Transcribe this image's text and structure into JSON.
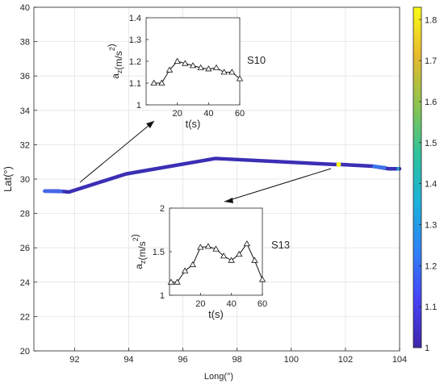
{
  "chart_data": {
    "type": "line",
    "main": {
      "xlabel": "Long(°)",
      "ylabel": "Lat(°)",
      "xlim": [
        90.5,
        104
      ],
      "ylim": [
        20,
        40
      ],
      "xticks": [
        92,
        94,
        96,
        98,
        100,
        102,
        104
      ],
      "yticks": [
        20,
        22,
        24,
        26,
        28,
        30,
        32,
        34,
        36,
        38,
        40
      ],
      "grid": true,
      "track": {
        "lon": [
          90.9,
          91.4,
          91.8,
          93.9,
          97.2,
          101.6,
          101.8,
          103.0,
          103.6,
          104.0
        ],
        "lat": [
          29.3,
          29.3,
          29.25,
          30.3,
          31.2,
          30.85,
          30.85,
          30.75,
          30.6,
          30.6
        ]
      },
      "highlight": {
        "lon": 101.75,
        "lat": 30.85,
        "value": 1.8
      }
    },
    "colorbar": {
      "ticks": [
        1,
        1.1,
        1.2,
        1.3,
        1.4,
        1.5,
        1.6,
        1.7,
        1.8
      ],
      "range": [
        1,
        1.83
      ],
      "colors": [
        "#3e26a8",
        "#4743f8",
        "#2f82f6",
        "#1ab2d9",
        "#2fc29b",
        "#8dc44e",
        "#e8b92f",
        "#f9fb15"
      ]
    },
    "insets": [
      {
        "label": "S10",
        "xlabel": "t(s)",
        "ylabel_base": "a",
        "ylabel_sub": "z",
        "ylabel_unit": "(m/s",
        "ylabel_sup": "2",
        "ylabel_end": ")",
        "xlim": [
          0,
          60
        ],
        "ylim": [
          1,
          1.4
        ],
        "xticks": [
          20,
          40,
          60
        ],
        "yticks": [
          "1",
          "1.1",
          "1.2",
          "1.3",
          "1.4"
        ],
        "x": [
          5,
          10,
          15,
          20,
          25,
          30,
          35,
          40,
          45,
          50,
          55,
          60
        ],
        "y": [
          1.1,
          1.1,
          1.16,
          1.2,
          1.19,
          1.18,
          1.17,
          1.165,
          1.17,
          1.15,
          1.15,
          1.12
        ]
      },
      {
        "label": "S13",
        "xlabel": "t(s)",
        "ylabel_base": "a",
        "ylabel_sub": "z",
        "ylabel_unit": "(m/s",
        "ylabel_sup": "2",
        "ylabel_end": ")",
        "xlim": [
          0,
          60
        ],
        "ylim": [
          1,
          2
        ],
        "xticks": [
          20,
          40,
          60
        ],
        "yticks": [
          "1",
          "1.5",
          "2"
        ],
        "x": [
          1,
          5,
          10,
          15,
          20,
          25,
          30,
          35,
          40,
          45,
          50,
          55,
          60
        ],
        "y": [
          1.15,
          1.15,
          1.28,
          1.35,
          1.55,
          1.56,
          1.53,
          1.45,
          1.4,
          1.47,
          1.59,
          1.4,
          1.18
        ]
      }
    ]
  }
}
